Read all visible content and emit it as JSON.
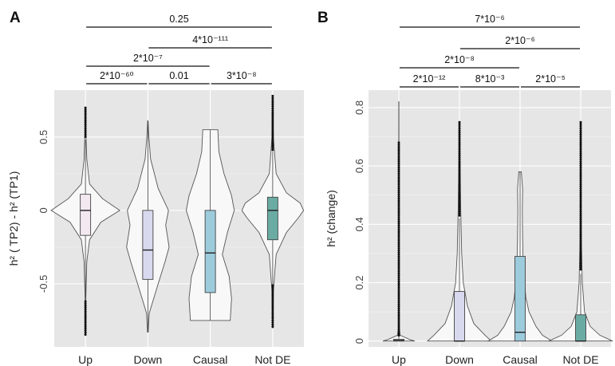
{
  "colors": {
    "panel_bg": "#e6e6e6",
    "up": "#f3e8f0",
    "down": "#d8d9ee",
    "causal": "#9ccbdc",
    "not_de": "#6aaca4"
  },
  "chart_data": [
    {
      "type": "violin",
      "panel_label": "A",
      "ylabel": "h² ( TP2) - h² (TP1)",
      "categories": [
        "Up",
        "Down",
        "Causal",
        "Not DE"
      ],
      "ylim": [
        -0.93,
        0.82
      ],
      "yticks": [
        -0.5,
        0,
        0.5
      ],
      "ytick_labels": [
        "-0.5",
        "0",
        "0.5"
      ],
      "grid": true,
      "series": [
        {
          "category": "Up",
          "color_key": "up",
          "violin_range": [
            -0.85,
            0.7
          ],
          "density": [
            [
              -0.85,
              0.004
            ],
            [
              -0.6,
              0.01
            ],
            [
              -0.35,
              0.04
            ],
            [
              -0.2,
              0.12
            ],
            [
              -0.08,
              0.45
            ],
            [
              0.0,
              1.0
            ],
            [
              0.08,
              0.5
            ],
            [
              0.18,
              0.12
            ],
            [
              0.35,
              0.04
            ],
            [
              0.55,
              0.012
            ],
            [
              0.7,
              0.004
            ]
          ],
          "box": {
            "q1": -0.17,
            "median": 0.0,
            "q3": 0.11,
            "whisker_low": -0.6,
            "whisker_high": 0.48
          },
          "outliers_low": [
            -0.85,
            -0.62
          ],
          "outliers_high": [
            0.49,
            0.7
          ]
        },
        {
          "category": "Down",
          "color_key": "down",
          "violin_range": [
            -0.83,
            0.61
          ],
          "density": [
            [
              -0.83,
              0.01
            ],
            [
              -0.7,
              0.04
            ],
            [
              -0.5,
              0.3
            ],
            [
              -0.35,
              0.5
            ],
            [
              -0.25,
              0.62
            ],
            [
              -0.1,
              0.52
            ],
            [
              0.0,
              0.6
            ],
            [
              0.15,
              0.3
            ],
            [
              0.35,
              0.08
            ],
            [
              0.5,
              0.03
            ],
            [
              0.61,
              0.006
            ]
          ],
          "box": {
            "q1": -0.47,
            "median": -0.27,
            "q3": 0.0,
            "whisker_low": -0.83,
            "whisker_high": 0.61
          },
          "outliers_low": [],
          "outliers_high": []
        },
        {
          "category": "Causal",
          "color_key": "causal",
          "violin_range": [
            -0.75,
            0.55
          ],
          "density": [
            [
              -0.75,
              0.58
            ],
            [
              -0.6,
              0.62
            ],
            [
              -0.45,
              0.55
            ],
            [
              -0.3,
              0.35
            ],
            [
              -0.15,
              0.5
            ],
            [
              0.0,
              0.7
            ],
            [
              0.1,
              0.62
            ],
            [
              0.25,
              0.4
            ],
            [
              0.4,
              0.25
            ],
            [
              0.55,
              0.22
            ]
          ],
          "box": {
            "q1": -0.56,
            "median": -0.29,
            "q3": 0.0,
            "whisker_low": -0.75,
            "whisker_high": 0.55
          },
          "outliers_low": [],
          "outliers_high": []
        },
        {
          "category": "Not DE",
          "color_key": "not_de",
          "violin_range": [
            -0.8,
            0.78
          ],
          "density": [
            [
              -0.8,
              0.005
            ],
            [
              -0.55,
              0.02
            ],
            [
              -0.3,
              0.1
            ],
            [
              -0.15,
              0.4
            ],
            [
              -0.05,
              0.75
            ],
            [
              0.0,
              0.9
            ],
            [
              0.05,
              0.8
            ],
            [
              0.12,
              0.4
            ],
            [
              0.25,
              0.1
            ],
            [
              0.5,
              0.02
            ],
            [
              0.78,
              0.004
            ]
          ],
          "box": {
            "q1": -0.2,
            "median": 0.0,
            "q3": 0.09,
            "whisker_low": -0.5,
            "whisker_high": 0.4
          },
          "outliers_low": [
            -0.8,
            -0.51
          ],
          "outliers_high": [
            0.41,
            0.78
          ]
        }
      ],
      "comparisons": [
        {
          "from": "Up",
          "to": "Not DE",
          "label": "0.25",
          "level": 4
        },
        {
          "from": "Down",
          "to": "Not DE",
          "label": "4*10⁻¹¹¹",
          "level": 3
        },
        {
          "from": "Up",
          "to": "Causal",
          "label": "2*10⁻⁷",
          "level": 2
        },
        {
          "from": "Up",
          "to": "Down",
          "label": "2*10⁻⁶⁰",
          "level": 1
        },
        {
          "from": "Down",
          "to": "Causal",
          "label": "0.01",
          "level": 1
        },
        {
          "from": "Causal",
          "to": "Not DE",
          "label": "3*10⁻⁸",
          "level": 1
        }
      ]
    },
    {
      "type": "violin",
      "panel_label": "B",
      "ylabel": "h² (change)",
      "categories": [
        "Up",
        "Down",
        "Causal",
        "Not DE"
      ],
      "ylim": [
        -0.02,
        0.86
      ],
      "yticks": [
        0,
        0.2,
        0.4,
        0.6,
        0.8
      ],
      "ytick_labels": [
        "0",
        "0.2",
        "0.4",
        "0.6",
        "0.8"
      ],
      "grid": true,
      "series": [
        {
          "category": "Up",
          "color_key": "up",
          "violin_range": [
            0.0,
            0.82
          ],
          "density": [
            [
              0.0,
              0.5
            ],
            [
              0.005,
              0.35
            ],
            [
              0.02,
              0.04
            ],
            [
              0.05,
              0.01
            ],
            [
              0.3,
              0.004
            ],
            [
              0.82,
              0.002
            ]
          ],
          "box": {
            "q1": 0.0,
            "median": 0.002,
            "q3": 0.006,
            "whisker_low": 0.0,
            "whisker_high": 0.015
          },
          "outliers_low": [],
          "outliers_high": [
            0.015,
            0.68
          ]
        },
        {
          "category": "Down",
          "color_key": "down",
          "violin_range": [
            0.0,
            0.75
          ],
          "density": [
            [
              0.0,
              1.0
            ],
            [
              0.02,
              0.8
            ],
            [
              0.06,
              0.45
            ],
            [
              0.12,
              0.25
            ],
            [
              0.2,
              0.12
            ],
            [
              0.3,
              0.07
            ],
            [
              0.45,
              0.04
            ],
            [
              0.6,
              0.02
            ],
            [
              0.75,
              0.005
            ]
          ],
          "box": {
            "q1": 0.0,
            "median": 0.0,
            "q3": 0.17,
            "whisker_low": 0.0,
            "whisker_high": 0.42
          },
          "outliers_low": [],
          "outliers_high": [
            0.43,
            0.75
          ]
        },
        {
          "category": "Causal",
          "color_key": "causal",
          "violin_range": [
            0.0,
            0.58
          ],
          "density": [
            [
              0.0,
              1.0
            ],
            [
              0.02,
              0.7
            ],
            [
              0.05,
              0.5
            ],
            [
              0.1,
              0.28
            ],
            [
              0.15,
              0.18
            ],
            [
              0.25,
              0.1
            ],
            [
              0.35,
              0.08
            ],
            [
              0.45,
              0.07
            ],
            [
              0.52,
              0.08
            ],
            [
              0.58,
              0.04
            ]
          ],
          "box": {
            "q1": 0.0,
            "median": 0.03,
            "q3": 0.29,
            "whisker_low": 0.0,
            "whisker_high": 0.58
          },
          "outliers_low": [],
          "outliers_high": []
        },
        {
          "category": "Not DE",
          "color_key": "not_de",
          "violin_range": [
            0.0,
            0.75
          ],
          "density": [
            [
              0.0,
              1.0
            ],
            [
              0.02,
              0.6
            ],
            [
              0.05,
              0.3
            ],
            [
              0.1,
              0.12
            ],
            [
              0.2,
              0.05
            ],
            [
              0.35,
              0.02
            ],
            [
              0.75,
              0.003
            ]
          ],
          "box": {
            "q1": 0.0,
            "median": 0.0,
            "q3": 0.09,
            "whisker_low": 0.0,
            "whisker_high": 0.23
          },
          "outliers_low": [],
          "outliers_high": [
            0.24,
            0.75
          ]
        }
      ],
      "comparisons": [
        {
          "from": "Up",
          "to": "Not DE",
          "label": "7*10⁻⁶",
          "level": 4
        },
        {
          "from": "Down",
          "to": "Not DE",
          "label": "2*10⁻⁶",
          "level": 3
        },
        {
          "from": "Up",
          "to": "Causal",
          "label": "2*10⁻⁸",
          "level": 2
        },
        {
          "from": "Up",
          "to": "Down",
          "label": "2*10⁻¹²",
          "level": 1
        },
        {
          "from": "Down",
          "to": "Causal",
          "label": "8*10⁻³",
          "level": 1
        },
        {
          "from": "Causal",
          "to": "Not DE",
          "label": "2*10⁻⁵",
          "level": 1
        }
      ]
    }
  ]
}
